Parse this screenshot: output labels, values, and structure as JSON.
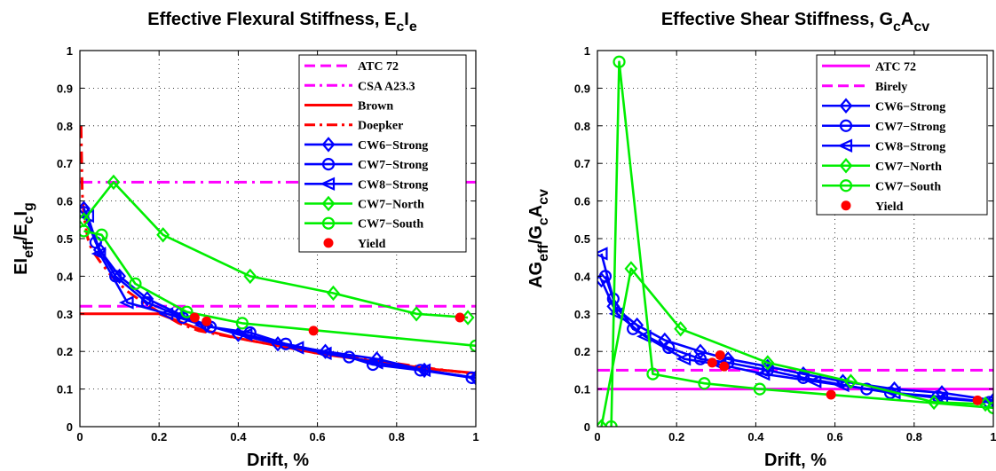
{
  "chart_data": [
    {
      "type": "line",
      "title": "Effective Flexural Stiffness, E",
      "title_sub1": "c",
      "title_mid": "I",
      "title_sub2": "e",
      "xlabel": "Drift, %",
      "ylabel": "EI",
      "ylabel_sub1": "eff",
      "ylabel_mid": "/E",
      "ylabel_sub2": "c",
      "ylabel_mid2": "I",
      "ylabel_sub3": "g",
      "xlim": [
        0,
        1
      ],
      "ylim": [
        0,
        1
      ],
      "xticks": [
        "0",
        "0.2",
        "0.4",
        "0.6",
        "0.8",
        "1"
      ],
      "yticks": [
        "0",
        "0.1",
        "0.2",
        "0.3",
        "0.4",
        "0.5",
        "0.6",
        "0.7",
        "0.8",
        "0.9",
        "1"
      ],
      "grid": true,
      "legend_position": "top-right",
      "series": [
        {
          "name": "ATC 72",
          "color": "#ff00ff",
          "dash": "dashed",
          "marker": "none",
          "x": [
            0,
            1
          ],
          "y": [
            0.32,
            0.32
          ]
        },
        {
          "name": "CSA A23.3",
          "color": "#ff00ff",
          "dash": "dashdot",
          "marker": "none",
          "x": [
            0,
            1
          ],
          "y": [
            0.65,
            0.65
          ]
        },
        {
          "name": "Brown",
          "color": "#ff0000",
          "dash": "solid",
          "marker": "none",
          "x": [
            0,
            0.2,
            0.25,
            0.3,
            0.4,
            0.5,
            0.6,
            0.7,
            0.8,
            0.9,
            1.0
          ],
          "y": [
            0.3,
            0.3,
            0.28,
            0.26,
            0.235,
            0.215,
            0.195,
            0.18,
            0.165,
            0.152,
            0.142
          ]
        },
        {
          "name": "Doepker",
          "color": "#ff0000",
          "dash": "dashdot",
          "marker": "none",
          "x": [
            0.003,
            0.006,
            0.01,
            0.02,
            0.03,
            0.05,
            0.08,
            0.12,
            0.16,
            0.2,
            0.25,
            0.3,
            0.4,
            0.5,
            0.6,
            0.7,
            0.8,
            0.9,
            1.0
          ],
          "y": [
            0.8,
            0.62,
            0.56,
            0.5,
            0.47,
            0.44,
            0.4,
            0.36,
            0.33,
            0.305,
            0.275,
            0.255,
            0.235,
            0.215,
            0.195,
            0.182,
            0.168,
            0.153,
            0.14
          ]
        },
        {
          "name": "CW6−Strong",
          "color": "#0000ff",
          "dash": "solid",
          "marker": "diamond",
          "x": [
            0.01,
            0.05,
            0.1,
            0.17,
            0.25,
            0.32,
            0.4,
            0.5,
            0.62,
            0.75,
            0.87,
            1.0
          ],
          "y": [
            0.58,
            0.47,
            0.4,
            0.34,
            0.3,
            0.27,
            0.245,
            0.22,
            0.2,
            0.18,
            0.15,
            0.13
          ]
        },
        {
          "name": "CW7−Strong",
          "color": "#0000ff",
          "dash": "solid",
          "marker": "circle",
          "x": [
            0.01,
            0.04,
            0.09,
            0.17,
            0.26,
            0.33,
            0.43,
            0.52,
            0.68,
            0.74,
            0.86,
            0.99
          ],
          "y": [
            0.57,
            0.49,
            0.4,
            0.33,
            0.29,
            0.265,
            0.25,
            0.22,
            0.185,
            0.165,
            0.15,
            0.13
          ]
        },
        {
          "name": "CW8−Strong",
          "color": "#0000ff",
          "dash": "solid",
          "marker": "triangle-left",
          "x": [
            0.02,
            0.05,
            0.12,
            0.22,
            0.31,
            0.42,
            0.55,
            0.62,
            0.75,
            0.87,
            1.0
          ],
          "y": [
            0.56,
            0.46,
            0.33,
            0.3,
            0.27,
            0.245,
            0.21,
            0.195,
            0.17,
            0.15,
            0.13
          ]
        },
        {
          "name": "CW7−North",
          "color": "#00ee00",
          "dash": "solid",
          "marker": "diamond",
          "x": [
            0.01,
            0.085,
            0.21,
            0.43,
            0.64,
            0.85,
            0.98
          ],
          "y": [
            0.55,
            0.65,
            0.51,
            0.4,
            0.355,
            0.3,
            0.29
          ]
        },
        {
          "name": "CW7−South",
          "color": "#00ee00",
          "dash": "solid",
          "marker": "circle",
          "x": [
            0.01,
            0.055,
            0.14,
            0.27,
            0.41,
            1.0
          ],
          "y": [
            0.52,
            0.51,
            0.38,
            0.305,
            0.275,
            0.215
          ]
        },
        {
          "name": "Yield",
          "color": "#ff0000",
          "dash": "none",
          "marker": "dot",
          "x": [
            0.29,
            0.32,
            0.59,
            0.96
          ],
          "y": [
            0.29,
            0.28,
            0.255,
            0.29
          ]
        }
      ]
    },
    {
      "type": "line",
      "title": "Effective Shear Stiffness, G",
      "title_sub1": "c",
      "title_mid": "A",
      "title_sub2": "cv",
      "xlabel": "Drift, %",
      "ylabel": "AG",
      "ylabel_sub1": "eff",
      "ylabel_mid": "/G",
      "ylabel_sub2": "c",
      "ylabel_mid2": "A",
      "ylabel_sub3": "cv",
      "xlim": [
        0,
        1
      ],
      "ylim": [
        0,
        1
      ],
      "xticks": [
        "0",
        "0.2",
        "0.4",
        "0.6",
        "0.8",
        "1"
      ],
      "yticks": [
        "0",
        "0.1",
        "0.2",
        "0.3",
        "0.4",
        "0.5",
        "0.6",
        "0.7",
        "0.8",
        "0.9",
        "1"
      ],
      "grid": true,
      "legend_position": "top-right",
      "series": [
        {
          "name": "ATC 72",
          "color": "#ff00ff",
          "dash": "solid",
          "marker": "none",
          "x": [
            0,
            1
          ],
          "y": [
            0.1,
            0.1
          ]
        },
        {
          "name": "Birely",
          "color": "#ff00ff",
          "dash": "dashed",
          "marker": "none",
          "x": [
            0,
            1
          ],
          "y": [
            0.15,
            0.15
          ]
        },
        {
          "name": "CW6−Strong",
          "color": "#0000ff",
          "dash": "solid",
          "marker": "diamond",
          "x": [
            0.01,
            0.04,
            0.1,
            0.17,
            0.26,
            0.33,
            0.43,
            0.52,
            0.62,
            0.75,
            0.87,
            1.0
          ],
          "y": [
            0.39,
            0.32,
            0.27,
            0.23,
            0.2,
            0.18,
            0.16,
            0.14,
            0.12,
            0.1,
            0.09,
            0.07
          ]
        },
        {
          "name": "CW7−Strong",
          "color": "#0000ff",
          "dash": "solid",
          "marker": "circle",
          "x": [
            0.02,
            0.04,
            0.09,
            0.18,
            0.26,
            0.33,
            0.43,
            0.52,
            0.68,
            0.74,
            0.86,
            0.99
          ],
          "y": [
            0.4,
            0.34,
            0.26,
            0.21,
            0.18,
            0.17,
            0.15,
            0.13,
            0.1,
            0.09,
            0.08,
            0.065
          ]
        },
        {
          "name": "CW8−Strong",
          "color": "#0000ff",
          "dash": "solid",
          "marker": "triangle-left",
          "x": [
            0.01,
            0.05,
            0.12,
            0.22,
            0.31,
            0.42,
            0.55,
            0.62,
            0.75,
            0.87,
            1.0
          ],
          "y": [
            0.46,
            0.3,
            0.24,
            0.18,
            0.165,
            0.14,
            0.12,
            0.11,
            0.09,
            0.075,
            0.065
          ]
        },
        {
          "name": "CW7−North",
          "color": "#00ee00",
          "dash": "solid",
          "marker": "diamond",
          "x": [
            0.01,
            0.085,
            0.21,
            0.43,
            0.64,
            0.85,
            0.98
          ],
          "y": [
            0.0,
            0.42,
            0.26,
            0.17,
            0.12,
            0.065,
            0.06
          ]
        },
        {
          "name": "CW7−South",
          "color": "#00ee00",
          "dash": "solid",
          "marker": "circle",
          "x": [
            0.035,
            0.055,
            0.14,
            0.27,
            0.41,
            1.0
          ],
          "y": [
            0.0,
            0.97,
            0.14,
            0.115,
            0.1,
            0.05
          ]
        },
        {
          "name": "Yield",
          "color": "#ff0000",
          "dash": "none",
          "marker": "dot",
          "x": [
            0.29,
            0.31,
            0.32,
            0.59,
            0.96
          ],
          "y": [
            0.17,
            0.19,
            0.16,
            0.085,
            0.07
          ]
        }
      ]
    }
  ]
}
